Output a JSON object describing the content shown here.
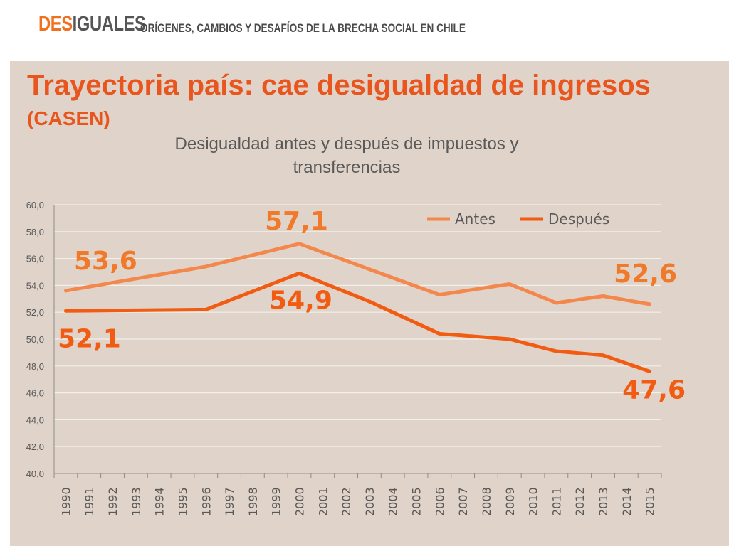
{
  "header": {
    "brand_part1": "DES",
    "brand_part2": "IGUALES",
    "tagline": "ORÍGENES, CAMBIOS Y DESAFÍOS DE LA BRECHA SOCIAL EN CHILE"
  },
  "slide": {
    "title": "Trayectoria país: cae desigualdad de ingresos",
    "subtitle": "(CASEN)"
  },
  "colors": {
    "antes": "#f4884c",
    "despues": "#f25b12",
    "label_orange": "#f07a2a",
    "panel": "#e0d3c9"
  },
  "chart_data": {
    "type": "line",
    "title": "Desigualdad antes y después de impuestos y transferencias",
    "xlabel": "",
    "ylabel": "",
    "ylim": [
      40,
      60
    ],
    "ytick_step": 2,
    "grid": true,
    "legend_position": "top-right",
    "categories": [
      "1990",
      "1991",
      "1992",
      "1993",
      "1994",
      "1995",
      "1996",
      "1997",
      "1998",
      "1999",
      "2000",
      "2001",
      "2002",
      "2003",
      "2004",
      "2005",
      "2006",
      "2007",
      "2008",
      "2009",
      "2010",
      "2011",
      "2012",
      "2013",
      "2014",
      "2015"
    ],
    "series": [
      {
        "name": "Antes",
        "points": [
          {
            "x": "1990",
            "y": 53.6
          },
          {
            "x": "1996",
            "y": 55.4
          },
          {
            "x": "2000",
            "y": 57.1
          },
          {
            "x": "2003",
            "y": 55.2
          },
          {
            "x": "2006",
            "y": 53.3
          },
          {
            "x": "2009",
            "y": 54.1
          },
          {
            "x": "2011",
            "y": 52.7
          },
          {
            "x": "2013",
            "y": 53.2
          },
          {
            "x": "2015",
            "y": 52.6
          }
        ]
      },
      {
        "name": "Después",
        "points": [
          {
            "x": "1990",
            "y": 52.1
          },
          {
            "x": "1996",
            "y": 52.2
          },
          {
            "x": "2000",
            "y": 54.9
          },
          {
            "x": "2003",
            "y": 52.8
          },
          {
            "x": "2006",
            "y": 50.4
          },
          {
            "x": "2009",
            "y": 50.0
          },
          {
            "x": "2011",
            "y": 49.1
          },
          {
            "x": "2013",
            "y": 48.8
          },
          {
            "x": "2015",
            "y": 47.6
          }
        ]
      }
    ],
    "annotations": [
      {
        "text": "53,6",
        "x": "1990",
        "series": "Antes"
      },
      {
        "text": "57,1",
        "x": "2000",
        "series": "Antes"
      },
      {
        "text": "52,6",
        "x": "2015",
        "series": "Antes"
      },
      {
        "text": "52,1",
        "x": "1990",
        "series": "Después"
      },
      {
        "text": "54,9",
        "x": "2000",
        "series": "Después"
      },
      {
        "text": "47,6",
        "x": "2015",
        "series": "Después"
      }
    ]
  }
}
